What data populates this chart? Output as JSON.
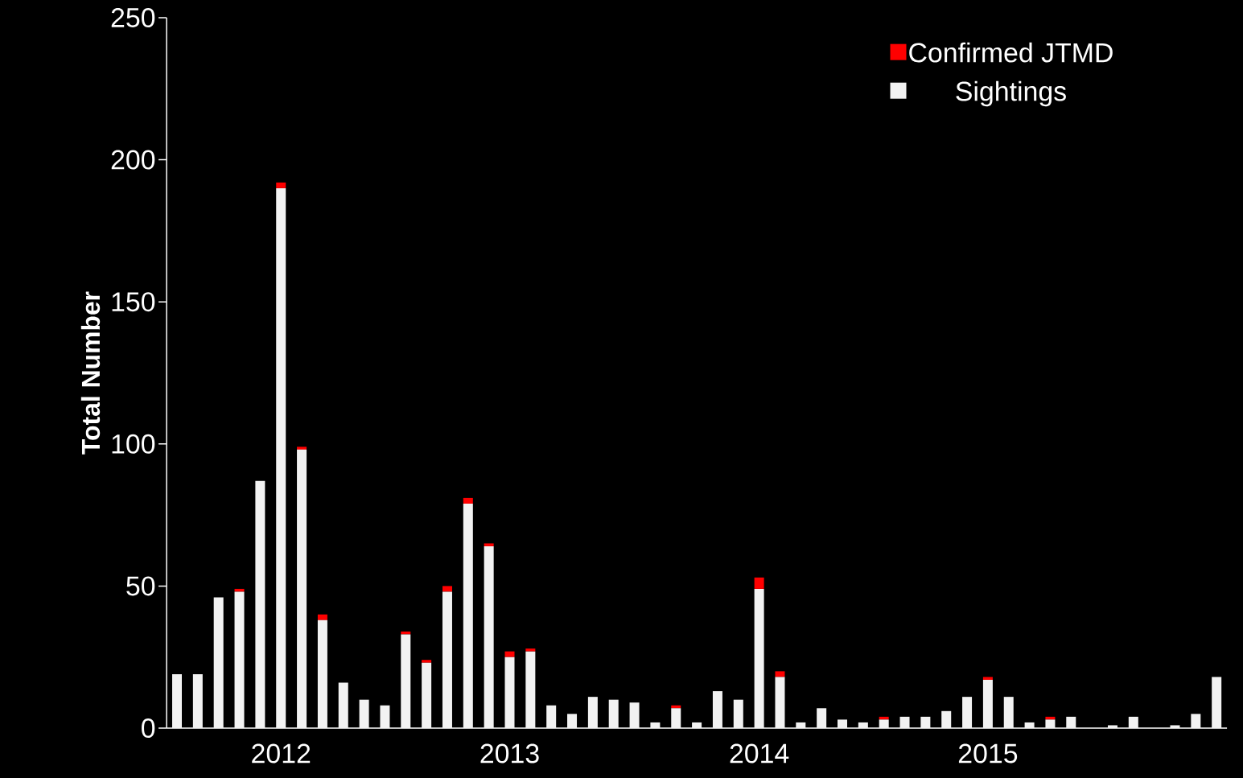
{
  "chart_data": {
    "type": "bar",
    "stacked": true,
    "ylabel": "Total Number",
    "categories": [
      null,
      null,
      null,
      null,
      null,
      "2012",
      null,
      null,
      null,
      null,
      null,
      null,
      null,
      null,
      null,
      null,
      "2013",
      null,
      null,
      null,
      null,
      null,
      null,
      null,
      null,
      null,
      null,
      null,
      "2014",
      null,
      null,
      null,
      null,
      null,
      null,
      null,
      null,
      null,
      null,
      "2015",
      null,
      null,
      null,
      null,
      null,
      null,
      null,
      null,
      null,
      null,
      null
    ],
    "series": [
      {
        "name": "Sightings",
        "color": "#f2f2f2",
        "values": [
          19,
          19,
          46,
          48,
          87,
          190,
          98,
          38,
          16,
          10,
          8,
          33,
          23,
          48,
          79,
          64,
          25,
          27,
          8,
          5,
          11,
          10,
          9,
          2,
          7,
          2,
          13,
          10,
          49,
          18,
          2,
          7,
          3,
          2,
          3,
          4,
          4,
          6,
          11,
          17,
          11,
          2,
          3,
          4,
          0,
          1,
          4,
          0,
          1,
          5,
          18
        ]
      },
      {
        "name": "Confirmed JTMD",
        "color": "#ff0000",
        "values": [
          0,
          0,
          0,
          1,
          0,
          2,
          1,
          2,
          0,
          0,
          0,
          1,
          1,
          2,
          2,
          1,
          2,
          1,
          0,
          0,
          0,
          0,
          0,
          0,
          1,
          0,
          0,
          0,
          4,
          2,
          0,
          0,
          0,
          0,
          1,
          0,
          0,
          0,
          0,
          1,
          0,
          0,
          1,
          0,
          0,
          0,
          0,
          0,
          0,
          0,
          0
        ]
      }
    ],
    "ylim": [
      0,
      250
    ],
    "yticks": [
      0,
      50,
      100,
      150,
      200,
      250
    ],
    "legend": "top right"
  }
}
